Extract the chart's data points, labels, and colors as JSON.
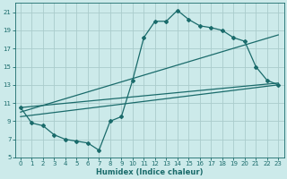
{
  "xlabel": "Humidex (Indice chaleur)",
  "bg_color": "#cceaea",
  "grid_color": "#aacccc",
  "line_color": "#1a6b6b",
  "xlim": [
    -0.5,
    23.5
  ],
  "ylim": [
    5,
    22
  ],
  "xticks": [
    0,
    1,
    2,
    3,
    4,
    5,
    6,
    7,
    8,
    9,
    10,
    11,
    12,
    13,
    14,
    15,
    16,
    17,
    18,
    19,
    20,
    21,
    22,
    23
  ],
  "yticks": [
    5,
    7,
    9,
    11,
    13,
    15,
    17,
    19,
    21
  ],
  "curve1_x": [
    0,
    1,
    2,
    3,
    4,
    5,
    6,
    7,
    8,
    9,
    10,
    11,
    12,
    13,
    14,
    15,
    16,
    17,
    18,
    19,
    20,
    21,
    22,
    23
  ],
  "curve1_y": [
    10.5,
    8.8,
    8.5,
    7.5,
    7.0,
    6.8,
    6.6,
    5.8,
    9.0,
    9.5,
    13.5,
    18.2,
    20.0,
    20.0,
    21.2,
    20.2,
    19.5,
    19.3,
    19.0,
    18.2,
    17.8,
    15.0,
    13.5,
    13.0
  ],
  "line1_x": [
    0,
    23
  ],
  "line1_y": [
    9.5,
    13.0
  ],
  "line2_x": [
    0,
    23
  ],
  "line2_y": [
    10.5,
    13.2
  ],
  "line3_x": [
    0,
    23
  ],
  "line3_y": [
    10.0,
    18.5
  ]
}
